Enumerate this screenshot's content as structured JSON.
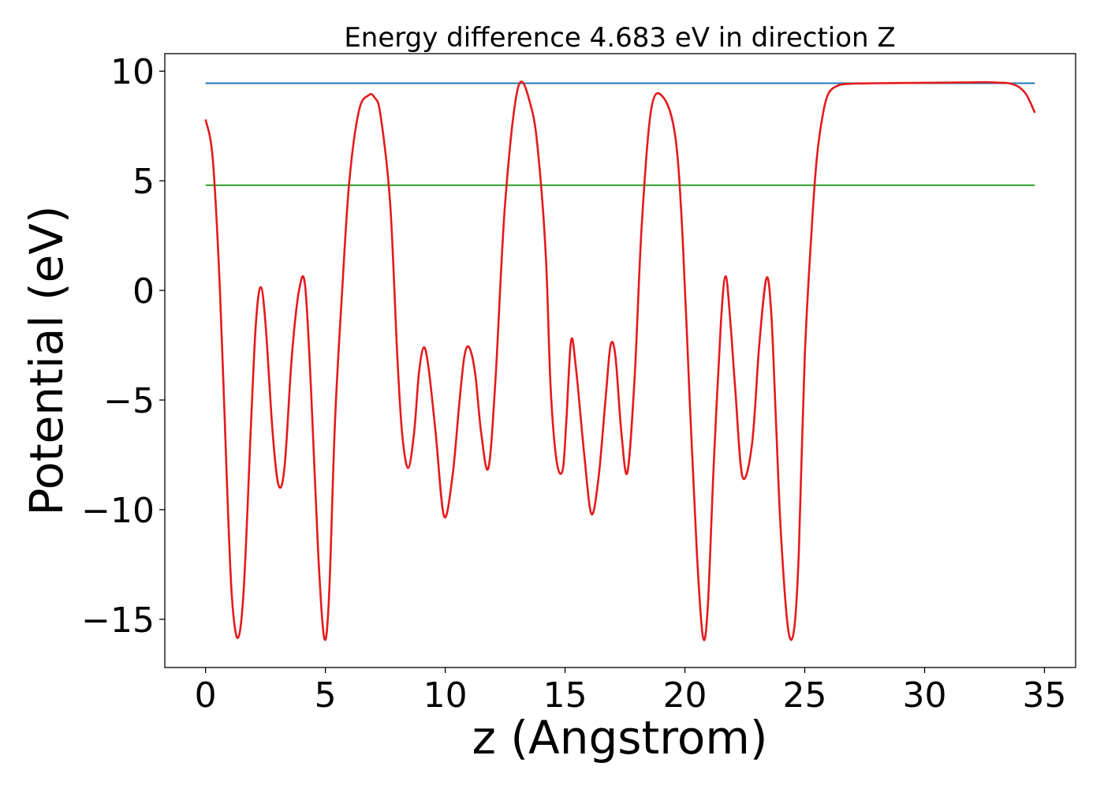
{
  "chart_data": {
    "type": "line",
    "title": "Energy difference 4.683 eV in direction Z",
    "xlabel": "z (Angstrom)",
    "ylabel": "Potential (eV)",
    "xlim": [
      -1.7,
      36.3
    ],
    "ylim": [
      -17.2,
      10.8
    ],
    "xticks": [
      0,
      5,
      10,
      15,
      20,
      25,
      30,
      35
    ],
    "yticks": [
      -15,
      -10,
      -5,
      0,
      5,
      10
    ],
    "xtick_labels": [
      "0",
      "5",
      "10",
      "15",
      "20",
      "25",
      "30",
      "35"
    ],
    "ytick_labels": [
      "−15",
      "−10",
      "−5",
      "0",
      "5",
      "10"
    ],
    "grid": false,
    "legend": "none",
    "series": [
      {
        "kind": "hline",
        "color": "#1f77b4",
        "x": [
          0,
          34.6
        ],
        "y": [
          9.45,
          9.45
        ]
      },
      {
        "kind": "hline",
        "color": "#2ca02c",
        "x": [
          0,
          34.6
        ],
        "y": [
          4.8,
          4.8
        ]
      },
      {
        "kind": "curve",
        "color": "#e41a1c",
        "x": [
          0.0,
          0.3,
          0.6,
          0.9,
          1.1,
          1.35,
          1.6,
          1.9,
          2.1,
          2.3,
          2.5,
          2.8,
          3.05,
          3.3,
          3.6,
          3.9,
          4.15,
          4.4,
          4.7,
          4.95,
          5.15,
          5.4,
          5.7,
          6.0,
          6.4,
          6.8,
          7.05,
          7.3,
          7.7,
          8.0,
          8.2,
          8.45,
          8.7,
          8.9,
          9.1,
          9.3,
          9.6,
          9.95,
          10.3,
          10.6,
          10.8,
          11.0,
          11.25,
          11.5,
          11.8,
          12.1,
          12.5,
          13.05,
          13.6,
          13.9,
          14.2,
          14.4,
          14.65,
          14.9,
          15.05,
          15.25,
          15.45,
          15.8,
          16.1,
          16.4,
          16.7,
          16.9,
          17.1,
          17.35,
          17.6,
          17.9,
          18.2,
          18.6,
          19.1,
          19.6,
          19.9,
          20.2,
          20.5,
          20.75,
          20.95,
          21.2,
          21.5,
          21.7,
          21.9,
          22.1,
          22.4,
          22.8,
          23.1,
          23.4,
          23.6,
          23.8,
          24.0,
          24.3,
          24.55,
          24.75,
          25.0,
          25.3,
          25.5,
          25.75,
          26.0,
          26.4,
          26.8,
          27.3,
          28.0,
          29.0,
          30.0,
          31.0,
          32.0,
          32.5,
          33.0,
          33.5,
          33.9,
          34.2,
          34.4,
          34.6
        ],
        "y": [
          7.8,
          6.0,
          0.0,
          -9.0,
          -14.0,
          -15.85,
          -13.5,
          -6.0,
          -1.5,
          0.15,
          -1.5,
          -6.5,
          -8.9,
          -8.0,
          -3.0,
          0.0,
          0.25,
          -4.5,
          -12.0,
          -15.85,
          -14.0,
          -6.0,
          0.0,
          5.0,
          8.2,
          8.9,
          8.8,
          8.0,
          4.0,
          -3.0,
          -6.5,
          -8.1,
          -6.5,
          -3.8,
          -2.6,
          -3.5,
          -6.5,
          -10.3,
          -8.5,
          -5.0,
          -3.0,
          -2.6,
          -3.8,
          -6.5,
          -8.1,
          -4.0,
          4.0,
          9.3,
          8.3,
          6.0,
          1.5,
          -4.5,
          -7.8,
          -8.2,
          -6.0,
          -2.3,
          -3.5,
          -7.5,
          -10.2,
          -8.5,
          -4.8,
          -2.5,
          -3.0,
          -6.5,
          -8.3,
          -4.0,
          3.0,
          8.3,
          8.8,
          7.0,
          2.5,
          -5.0,
          -12.0,
          -15.8,
          -14.5,
          -8.0,
          -1.5,
          0.65,
          -1.5,
          -4.5,
          -8.5,
          -7.0,
          -2.5,
          0.55,
          -1.0,
          -6.0,
          -11.0,
          -15.4,
          -15.5,
          -12.0,
          -3.0,
          3.0,
          6.0,
          8.0,
          9.0,
          9.35,
          9.42,
          9.44,
          9.45,
          9.46,
          9.47,
          9.48,
          9.49,
          9.5,
          9.48,
          9.45,
          9.3,
          9.0,
          8.6,
          8.1
        ]
      }
    ]
  }
}
